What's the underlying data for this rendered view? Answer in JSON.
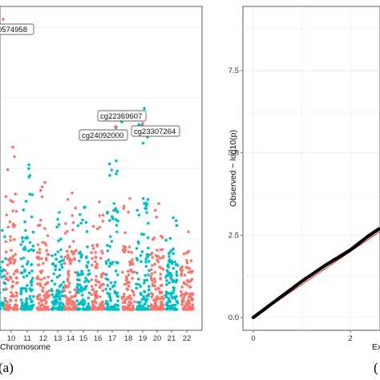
{
  "chart_data": [
    {
      "type": "scatter",
      "subtype": "manhattan",
      "panel_label": "(a)",
      "xlabel": "Chromosome",
      "ylabel": "",
      "xtick_labels": [
        "10",
        "11",
        "12",
        "13",
        "14",
        "15",
        "16",
        "17",
        "18",
        "19",
        "20",
        "21",
        "22"
      ],
      "series_colors": [
        "#f8766d",
        "#00bfc4"
      ],
      "grid": true,
      "annotations": [
        {
          "label": "0574958",
          "chrom": "10"
        },
        {
          "label": "cg22369607",
          "chrom": "17"
        },
        {
          "label": "cg24092000",
          "chrom": "17"
        },
        {
          "label": "cg23307264",
          "chrom": "19"
        }
      ],
      "peaks": [
        {
          "chrom": "10",
          "max_y": 4.6
        },
        {
          "chrom": "11",
          "max_y": 4.1
        },
        {
          "chrom": "12",
          "max_y": 3.6
        },
        {
          "chrom": "13",
          "max_y": 2.75
        },
        {
          "chrom": "14",
          "max_y": 3.3
        },
        {
          "chrom": "15",
          "max_y": 2.9
        },
        {
          "chrom": "16",
          "max_y": 3.05
        },
        {
          "chrom": "17",
          "max_y": 5.5
        },
        {
          "chrom": "18",
          "max_y": 3.15
        },
        {
          "chrom": "19",
          "max_y": 5.7
        },
        {
          "chrom": "20",
          "max_y": 3.0
        },
        {
          "chrom": "21",
          "max_y": 2.6
        },
        {
          "chrom": "22",
          "max_y": 2.2
        }
      ]
    },
    {
      "type": "scatter",
      "subtype": "qq",
      "panel_label": "(",
      "xlabel": "Expe",
      "ylabel": "Observed − log10(p)",
      "ytick_labels": [
        "0.0",
        "2.5",
        "5.0",
        "7.5"
      ],
      "xtick_labels": [
        "0",
        "2"
      ],
      "ylim": [
        0,
        9.2
      ],
      "xlim": [
        0,
        2.6
      ],
      "reference_line_color": "#d62728",
      "points_color": "#000000",
      "grid": true,
      "points": [
        {
          "x": 0.0,
          "y": 0.0
        },
        {
          "x": 0.5,
          "y": 0.55
        },
        {
          "x": 1.0,
          "y": 1.1
        },
        {
          "x": 1.5,
          "y": 1.6
        },
        {
          "x": 2.0,
          "y": 2.05
        },
        {
          "x": 2.35,
          "y": 2.45
        },
        {
          "x": 2.6,
          "y": 2.7
        }
      ]
    }
  ]
}
